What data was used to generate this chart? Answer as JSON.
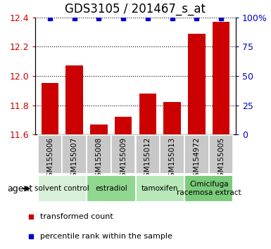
{
  "title": "GDS3105 / 201467_s_at",
  "samples": [
    "GSM155006",
    "GSM155007",
    "GSM155008",
    "GSM155009",
    "GSM155012",
    "GSM155013",
    "GSM154972",
    "GSM155005"
  ],
  "bar_values": [
    11.95,
    12.07,
    11.67,
    11.72,
    11.88,
    11.82,
    12.29,
    12.37
  ],
  "percentile_values": [
    99.5,
    99.5,
    99.5,
    99.5,
    99.5,
    99.5,
    99.5,
    99.5
  ],
  "ylim_left": [
    11.6,
    12.4
  ],
  "ylim_right": [
    0,
    100
  ],
  "yticks_left": [
    11.6,
    11.8,
    12.0,
    12.2,
    12.4
  ],
  "yticks_right": [
    0,
    25,
    50,
    75,
    100
  ],
  "bar_color": "#cc0000",
  "percentile_color": "#0000cc",
  "bar_width": 0.7,
  "agent_groups": [
    {
      "label": "solvent control",
      "samples": [
        "GSM155006",
        "GSM155007"
      ],
      "color": "#d8efd8"
    },
    {
      "label": "estradiol",
      "samples": [
        "GSM155008",
        "GSM155009"
      ],
      "color": "#90d890"
    },
    {
      "label": "tamoxifen",
      "samples": [
        "GSM155012",
        "GSM155013"
      ],
      "color": "#b8e8b8"
    },
    {
      "label": "Cimicifuga\nracemosa extract",
      "samples": [
        "GSM154972",
        "GSM155005"
      ],
      "color": "#7acc7a"
    }
  ],
  "agent_label": "agent",
  "legend_items": [
    {
      "label": "transformed count",
      "color": "#cc0000"
    },
    {
      "label": "percentile rank within the sample",
      "color": "#0000cc"
    }
  ],
  "sample_box_color": "#c8c8c8",
  "tick_label_color_left": "#cc0000",
  "tick_label_color_right": "#0000cc",
  "title_fontsize": 12,
  "tick_fontsize": 9,
  "sample_label_fontsize": 7.5,
  "agent_fontsize": 7.5,
  "legend_fontsize": 8
}
